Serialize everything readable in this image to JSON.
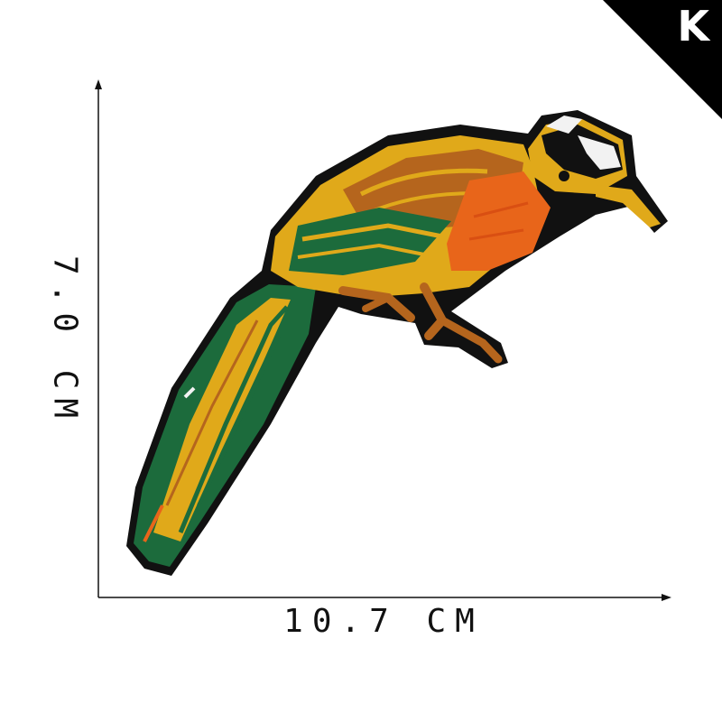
{
  "badge": {
    "letter": "K",
    "color": "#000000"
  },
  "dimensions": {
    "width_label": "10.7 CM",
    "height_label": "7.0 CM"
  },
  "product": {
    "kind": "embroidered bird patch",
    "colors": {
      "gold": "#e0a91a",
      "orange": "#e8651a",
      "green": "#1c6b3c",
      "brown": "#b5651d",
      "border": "#111111",
      "white": "#f2f2f2"
    }
  }
}
